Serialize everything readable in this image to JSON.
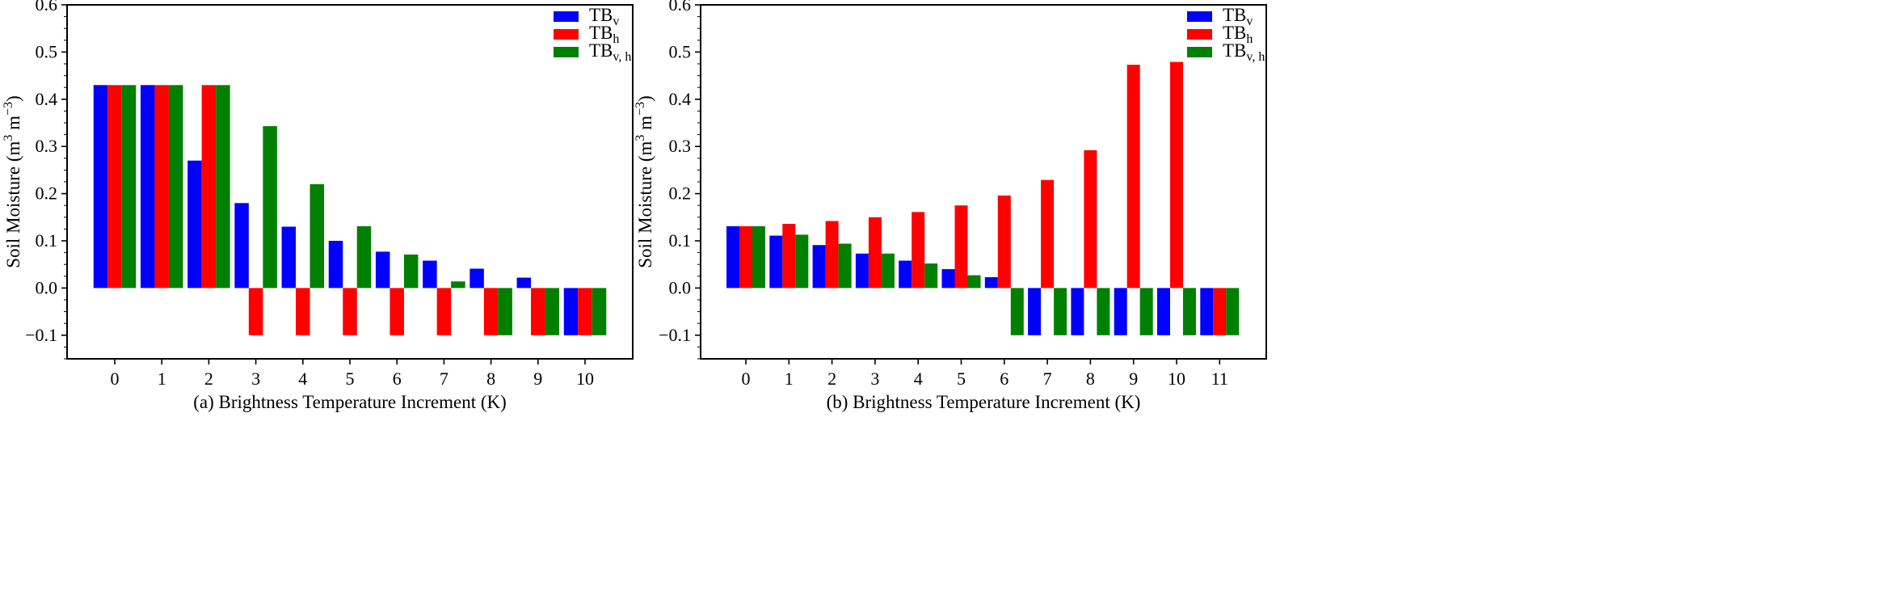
{
  "chart_data": [
    {
      "type": "bar",
      "xlabel": "(a)  Brightness Temperature Increment  (K)",
      "ylabel": "Soil Moisture  (m³ m⁻³)",
      "ylabel_parts": [
        "Soil Moisture  (m",
        "3",
        " m",
        "−3",
        ")"
      ],
      "ylim": [
        -0.15,
        0.6
      ],
      "yticks": [
        "−0.1",
        "0.0",
        "0.1",
        "0.2",
        "0.3",
        "0.4",
        "0.5",
        "0.6"
      ],
      "ytick_values": [
        -0.1,
        0.0,
        0.1,
        0.2,
        0.3,
        0.4,
        0.5,
        0.6
      ],
      "categories": [
        "0",
        "1",
        "2",
        "3",
        "4",
        "5",
        "6",
        "7",
        "8",
        "9",
        "10"
      ],
      "legend_position": "top-right",
      "series": [
        {
          "name": "TB_v",
          "label": "TB",
          "sub": "v",
          "color": "#0000ff",
          "values": [
            0.43,
            0.43,
            0.27,
            0.18,
            0.13,
            0.1,
            0.077,
            0.058,
            0.041,
            0.022,
            -0.1
          ]
        },
        {
          "name": "TB_h",
          "label": "TB",
          "sub": "h",
          "color": "#ff0000",
          "values": [
            0.43,
            0.43,
            0.43,
            -0.1,
            -0.1,
            -0.1,
            -0.1,
            -0.1,
            -0.1,
            -0.1,
            -0.1
          ]
        },
        {
          "name": "TB_v,h",
          "label": "TB",
          "sub": "v, h",
          "color": "#008000",
          "values": [
            0.43,
            0.43,
            0.43,
            0.343,
            0.22,
            0.131,
            0.071,
            0.014,
            -0.1,
            -0.1,
            -0.1
          ]
        }
      ]
    },
    {
      "type": "bar",
      "xlabel": "(b)  Brightness Temperature Increment  (K)",
      "ylabel": "Soil Moisture  (m³ m⁻³)",
      "ylabel_parts": [
        "Soil Moisture  (m",
        "3",
        " m",
        "−3",
        ")"
      ],
      "ylim": [
        -0.15,
        0.6
      ],
      "yticks": [
        "−0.1",
        "0.0",
        "0.1",
        "0.2",
        "0.3",
        "0.4",
        "0.5",
        "0.6"
      ],
      "ytick_values": [
        -0.1,
        0.0,
        0.1,
        0.2,
        0.3,
        0.4,
        0.5,
        0.6
      ],
      "categories": [
        "0",
        "1",
        "2",
        "3",
        "4",
        "5",
        "6",
        "7",
        "8",
        "9",
        "10",
        "11"
      ],
      "legend_position": "top-right",
      "series": [
        {
          "name": "TB_v",
          "label": "TB",
          "sub": "v",
          "color": "#0000ff",
          "values": [
            0.131,
            0.111,
            0.091,
            0.073,
            0.058,
            0.04,
            0.023,
            -0.1,
            -0.1,
            -0.1,
            -0.1,
            -0.1
          ]
        },
        {
          "name": "TB_h",
          "label": "TB",
          "sub": "h",
          "color": "#ff0000",
          "values": [
            0.131,
            0.136,
            0.142,
            0.15,
            0.161,
            0.175,
            0.196,
            0.229,
            0.292,
            0.473,
            0.479,
            -0.1
          ]
        },
        {
          "name": "TB_v,h",
          "label": "TB",
          "sub": "v, h",
          "color": "#008000",
          "values": [
            0.131,
            0.113,
            0.094,
            0.073,
            0.052,
            0.027,
            -0.1,
            -0.1,
            -0.1,
            -0.1,
            -0.1,
            -0.1
          ]
        }
      ]
    }
  ]
}
